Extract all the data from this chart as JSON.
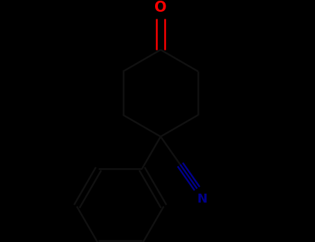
{
  "background_color": "#000000",
  "bond_color": "#111111",
  "O_color": "#ff0000",
  "N_color": "#00008b",
  "O_label": "O",
  "N_label": "N",
  "bond_width": 1.8,
  "figsize": [
    4.55,
    3.5
  ],
  "dpi": 100,
  "xlim": [
    0.0,
    10.0
  ],
  "ylim": [
    0.0,
    7.7
  ]
}
